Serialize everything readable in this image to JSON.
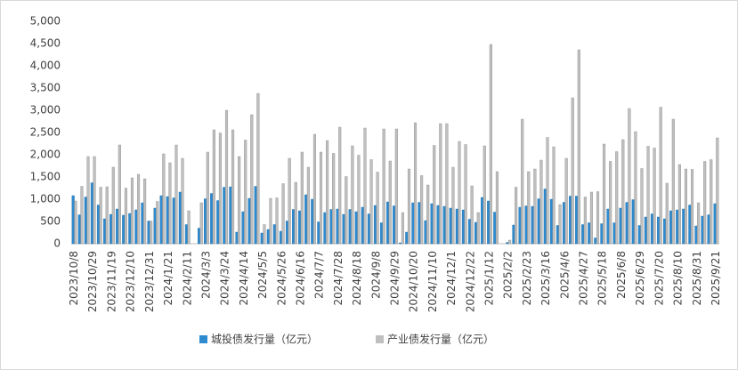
{
  "chart_data": {
    "type": "bar",
    "categories": [
      "2023/10/8",
      null,
      null,
      "2023/10/29",
      null,
      null,
      "2023/11/19",
      null,
      null,
      "2023/12/10",
      null,
      null,
      "2023/12/31",
      null,
      null,
      "2024/1/21",
      null,
      null,
      "2024/2/11",
      null,
      null,
      "2024/3/3",
      null,
      null,
      "2024/3/24",
      null,
      null,
      "2024/4/14",
      null,
      null,
      "2024/5/5",
      null,
      null,
      "2024/5/26",
      null,
      null,
      "2024/6/16",
      null,
      null,
      "2024/7/7",
      null,
      null,
      "2024/7/28",
      null,
      null,
      "2024/8/18",
      null,
      null,
      "2024/9/8",
      null,
      null,
      "2024/9/29",
      null,
      null,
      "2024/10/20",
      null,
      null,
      "2024/11/10",
      null,
      null,
      "2024/12/1",
      null,
      null,
      "2024/12/22",
      null,
      null,
      "2025/1/12",
      null,
      null,
      "2025/2/2",
      null,
      null,
      "2025/2/23",
      null,
      null,
      "2025/3/16",
      null,
      null,
      "2025/4/6",
      null,
      null,
      "2025/4/27",
      null,
      null,
      "2025/5/18",
      null,
      null,
      "2025/6/8",
      null,
      null,
      "2025/6/29",
      null,
      null,
      "2025/7/20",
      null,
      null,
      "2025/8/10",
      null,
      null,
      "2025/8/31",
      null,
      null,
      "2025/9/21"
    ],
    "series": [
      {
        "name": "城投债发行量（亿元）",
        "color": "#2e8bd0",
        "values": [
          1080,
          650,
          1050,
          1370,
          870,
          560,
          660,
          780,
          640,
          680,
          760,
          920,
          510,
          800,
          1080,
          1060,
          1030,
          1160,
          430,
          0,
          350,
          1010,
          1130,
          970,
          1270,
          1280,
          260,
          720,
          1020,
          1290,
          240,
          320,
          430,
          280,
          510,
          770,
          740,
          1100,
          1000,
          490,
          700,
          770,
          780,
          660,
          770,
          720,
          820,
          670,
          860,
          470,
          940,
          850,
          20,
          260,
          920,
          930,
          520,
          900,
          860,
          840,
          800,
          780,
          760,
          550,
          480,
          1040,
          960,
          710,
          0,
          30,
          420,
          820,
          850,
          840,
          1010,
          1230,
          1000,
          410,
          930,
          1070,
          1070,
          430,
          470,
          130,
          450,
          780,
          470,
          800,
          930,
          990,
          410,
          600,
          670,
          600,
          560,
          740,
          760,
          780,
          870,
          400,
          620,
          650,
          900
        ]
      },
      {
        "name": "产业债发行量（亿元）",
        "color": "#bfbfbf",
        "values": [
          960,
          1290,
          1960,
          1960,
          1270,
          1280,
          1720,
          2220,
          1250,
          1480,
          1560,
          1460,
          510,
          950,
          2020,
          1820,
          2220,
          1920,
          740,
          0,
          920,
          2060,
          2560,
          2490,
          3000,
          2560,
          1960,
          2330,
          2900,
          3380,
          430,
          1020,
          1030,
          1350,
          1920,
          1380,
          2060,
          1720,
          2460,
          2060,
          2320,
          2030,
          2620,
          1510,
          2200,
          1990,
          2600,
          1890,
          1610,
          2580,
          1860,
          2580,
          700,
          1680,
          2720,
          1530,
          1320,
          2210,
          2700,
          2700,
          1720,
          2300,
          2230,
          1300,
          700,
          2200,
          4480,
          1620,
          0,
          80,
          1270,
          2800,
          1620,
          1680,
          1880,
          2390,
          2180,
          880,
          1920,
          3280,
          4360,
          1050,
          1160,
          1170,
          2240,
          1850,
          2070,
          2340,
          3040,
          2520,
          1690,
          2190,
          2150,
          3070,
          1360,
          2800,
          1780,
          1680,
          1670,
          920,
          1850,
          1890,
          2380
        ]
      }
    ],
    "ylim": [
      0,
      5000
    ],
    "yticks": [
      0,
      500,
      {
        "value": 1000,
        "label": "1,000"
      },
      {
        "value": 1500,
        "label": "1,500"
      },
      {
        "value": 2000,
        "label": "2,000"
      },
      {
        "value": 2500,
        "label": "2,500"
      },
      {
        "value": 3000,
        "label": "3,000"
      },
      {
        "value": 3500,
        "label": "3,500"
      },
      {
        "value": 4000,
        "label": "4,000"
      },
      {
        "value": 4500,
        "label": "4,500"
      },
      {
        "value": 5000,
        "label": "5,000"
      }
    ],
    "grid": false,
    "legend": "bottom"
  }
}
